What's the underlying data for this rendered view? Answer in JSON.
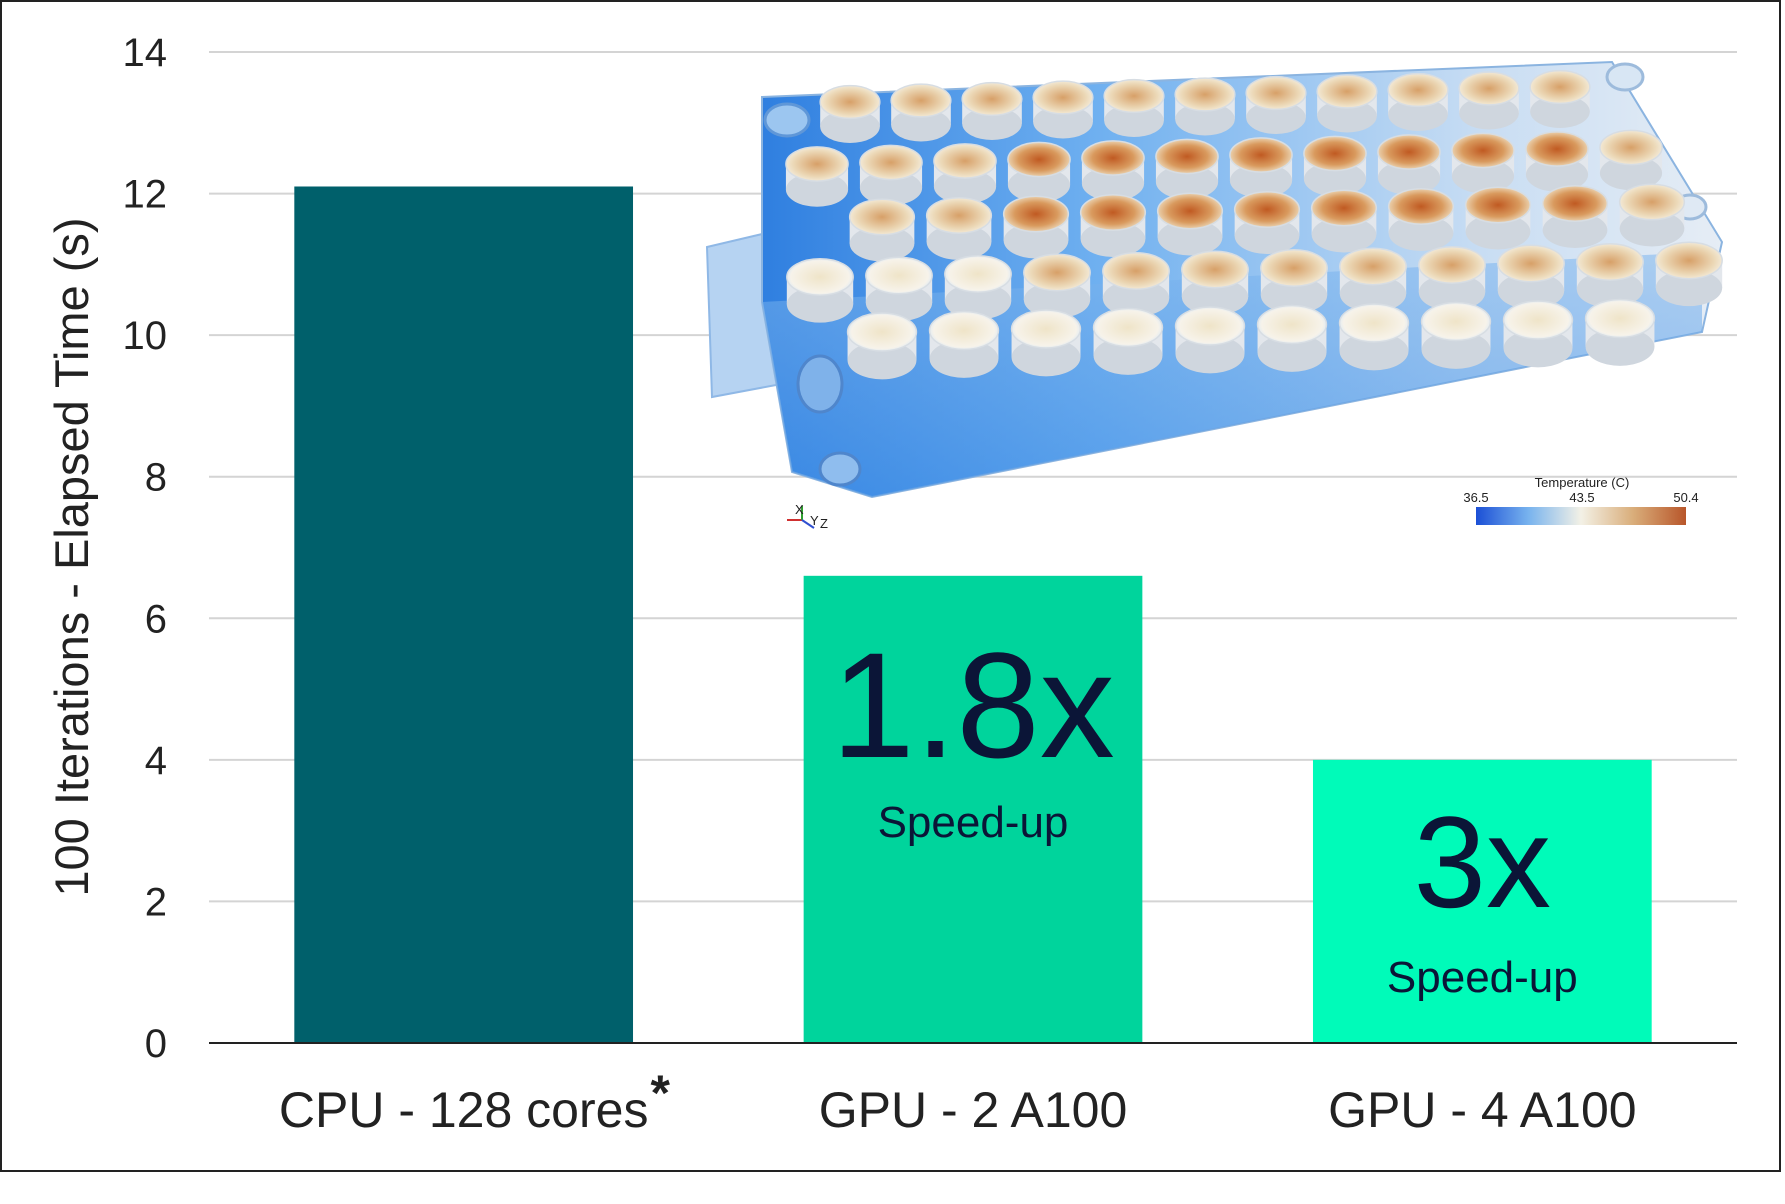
{
  "chart_data": {
    "type": "bar",
    "title": "",
    "xlabel": "",
    "ylabel": "100 Iterations - Elapsed Time (s)",
    "ylim": [
      0,
      14
    ],
    "yticks": [
      0,
      2,
      4,
      6,
      8,
      10,
      12,
      14
    ],
    "grid": true,
    "categories": [
      "CPU - 128 cores",
      "GPU - 2 A100",
      "GPU - 4 A100"
    ],
    "category_marks": [
      "*",
      "",
      ""
    ],
    "values": [
      12.1,
      6.6,
      4.0
    ],
    "bar_colors": [
      "#00606b",
      "#00d49c",
      "#00fbb9"
    ],
    "annotations": [
      {
        "category": "GPU - 2 A100",
        "value_text": "1.8x",
        "sub_text": "Speed-up"
      },
      {
        "category": "GPU - 4 A100",
        "value_text": "3x",
        "sub_text": "Speed-up"
      }
    ]
  },
  "inset": {
    "colorbar": {
      "title": "Temperature (C)",
      "min_label": "36.5",
      "mid_label": "43.5",
      "max_label": "50.4",
      "colors": [
        "#1b4fd6",
        "#f3f1e6",
        "#b8562a"
      ]
    },
    "axes_triad": {
      "x": "X",
      "y": "Y",
      "z": "Z"
    }
  }
}
